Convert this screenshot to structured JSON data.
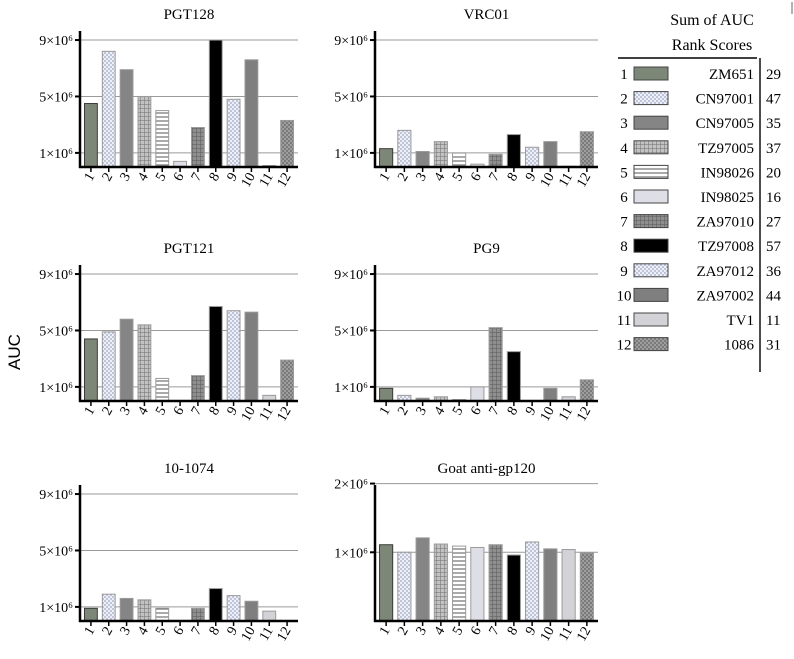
{
  "figure": {
    "y_axis_label": "AUC",
    "x_ticks": [
      "1",
      "2",
      "3",
      "4",
      "5",
      "6",
      "7",
      "8",
      "9",
      "10",
      "11",
      "12"
    ]
  },
  "legend": {
    "title_line1": "Sum of AUC",
    "title_line2": "Rank Scores",
    "items": [
      {
        "num": "1",
        "name": "ZM651",
        "score": "29"
      },
      {
        "num": "2",
        "name": "CN97001",
        "score": "47"
      },
      {
        "num": "3",
        "name": "CN97005",
        "score": "35"
      },
      {
        "num": "4",
        "name": "TZ97005",
        "score": "37"
      },
      {
        "num": "5",
        "name": "IN98026",
        "score": "20"
      },
      {
        "num": "6",
        "name": "IN98025",
        "score": "16"
      },
      {
        "num": "7",
        "name": "ZA97010",
        "score": "27"
      },
      {
        "num": "8",
        "name": "TZ97008",
        "score": "57"
      },
      {
        "num": "9",
        "name": "ZA97012",
        "score": "36"
      },
      {
        "num": "10",
        "name": "ZA97002",
        "score": "44"
      },
      {
        "num": "11",
        "name": "TV1",
        "score": "11"
      },
      {
        "num": "12",
        "name": "1086",
        "score": "31"
      }
    ]
  },
  "chart_data": [
    {
      "type": "bar",
      "title": "PGT128",
      "categories": [
        "1",
        "2",
        "3",
        "4",
        "5",
        "6",
        "7",
        "8",
        "9",
        "10",
        "11",
        "12"
      ],
      "values": [
        4.5,
        8.2,
        6.9,
        5.0,
        4.0,
        0.4,
        2.8,
        9.0,
        4.8,
        7.6,
        0.1,
        3.3
      ],
      "ylim": [
        0,
        9.5
      ],
      "yticks": [
        1,
        5,
        9
      ],
      "ytick_labels": [
        "1×10⁶",
        "5×10⁶",
        "9×10⁶"
      ],
      "ylabel": "AUC"
    },
    {
      "type": "bar",
      "title": "VRC01",
      "categories": [
        "1",
        "2",
        "3",
        "4",
        "5",
        "6",
        "7",
        "8",
        "9",
        "10",
        "11",
        "12"
      ],
      "values": [
        1.3,
        2.6,
        1.1,
        1.8,
        1.0,
        0.2,
        0.9,
        2.3,
        1.4,
        1.8,
        0.05,
        2.5
      ],
      "ylim": [
        0,
        9.5
      ],
      "yticks": [
        1,
        5,
        9
      ],
      "ytick_labels": [
        "1×10⁶",
        "5×10⁶",
        "9×10⁶"
      ],
      "ylabel": "AUC"
    },
    {
      "type": "bar",
      "title": "PGT121",
      "categories": [
        "1",
        "2",
        "3",
        "4",
        "5",
        "6",
        "7",
        "8",
        "9",
        "10",
        "11",
        "12"
      ],
      "values": [
        4.4,
        4.9,
        5.8,
        5.4,
        1.6,
        0.0,
        1.8,
        6.7,
        6.4,
        6.3,
        0.4,
        2.9
      ],
      "ylim": [
        0,
        9.5
      ],
      "yticks": [
        1,
        5,
        9
      ],
      "ytick_labels": [
        "1×10⁶",
        "5×10⁶",
        "9×10⁶"
      ],
      "ylabel": "AUC"
    },
    {
      "type": "bar",
      "title": "PG9",
      "categories": [
        "1",
        "2",
        "3",
        "4",
        "5",
        "6",
        "7",
        "8",
        "9",
        "10",
        "11",
        "12"
      ],
      "values": [
        0.9,
        0.4,
        0.2,
        0.3,
        0.1,
        1.0,
        5.2,
        3.5,
        0.0,
        0.9,
        0.3,
        1.5
      ],
      "ylim": [
        0,
        9.5
      ],
      "yticks": [
        1,
        5,
        9
      ],
      "ytick_labels": [
        "1×10⁶",
        "5×10⁶",
        "9×10⁶"
      ],
      "ylabel": "AUC"
    },
    {
      "type": "bar",
      "title": "10-1074",
      "categories": [
        "1",
        "2",
        "3",
        "4",
        "5",
        "6",
        "7",
        "8",
        "9",
        "10",
        "11",
        "12"
      ],
      "values": [
        0.9,
        1.9,
        1.6,
        1.5,
        0.9,
        0.0,
        0.9,
        2.3,
        1.8,
        1.4,
        0.7,
        0.0
      ],
      "ylim": [
        0,
        9.5
      ],
      "yticks": [
        1,
        5,
        9
      ],
      "ytick_labels": [
        "1×10⁶",
        "5×10⁶",
        "9×10⁶"
      ],
      "ylabel": "AUC"
    },
    {
      "type": "bar",
      "title": "Goat anti-gp120",
      "categories": [
        "1",
        "2",
        "3",
        "4",
        "5",
        "6",
        "7",
        "8",
        "9",
        "10",
        "11",
        "12"
      ],
      "values": [
        1.11,
        1.0,
        1.21,
        1.12,
        1.09,
        1.07,
        1.11,
        0.96,
        1.15,
        1.05,
        1.04,
        0.99
      ],
      "ylim": [
        0,
        1.95
      ],
      "yticks": [
        1,
        2
      ],
      "ytick_labels": [
        "1×10⁶",
        "2×10⁶"
      ],
      "ylabel": "AUC"
    }
  ],
  "colors": {
    "s1": "#7d8777",
    "s2": "#e6e9f1",
    "s3": "#858585",
    "s4": "#b0b0b0",
    "s5": "#ffffff",
    "s6": "#dedfe6",
    "s7": "#8f8f8f",
    "s8": "#000000",
    "s9": "#dfe4f2",
    "s10": "#7f7f7f",
    "s11": "#d3d3d7",
    "s12": "#a0a0a0"
  }
}
